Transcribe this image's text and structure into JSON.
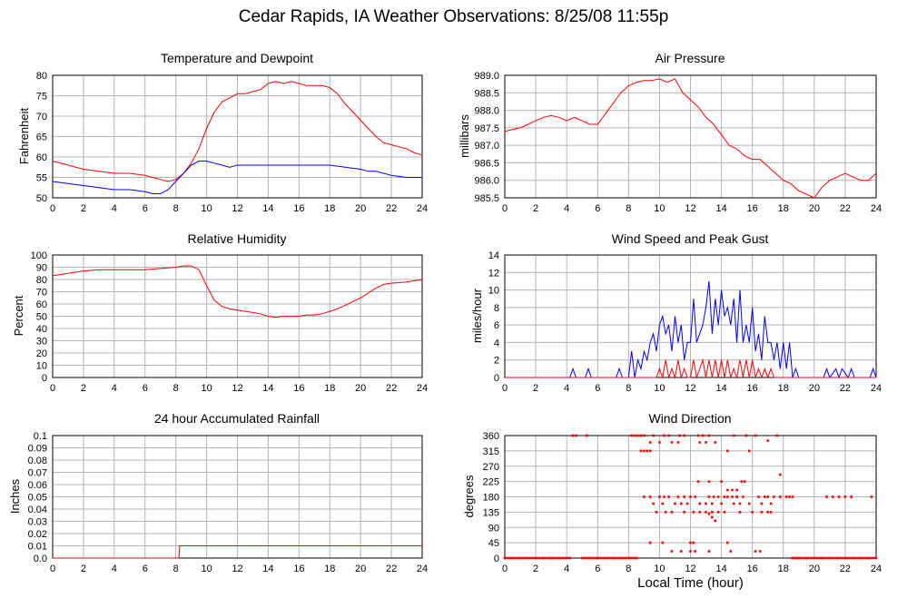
{
  "page": {
    "title": "Cedar Rapids, IA Weather Observations: 8/25/08 11:55p",
    "xlabel": "Local Time (hour)"
  },
  "colors": {
    "red": "#ff0000",
    "blue": "#0000ff",
    "grid": "#b4b4b4"
  },
  "chart_data": [
    {
      "id": "temp",
      "type": "line",
      "title": "Temperature and Dewpoint",
      "xlabel": "",
      "ylabel": "Fahrenheit",
      "xlim": [
        0,
        24
      ],
      "ylim": [
        50,
        80
      ],
      "xticks": [
        0,
        2,
        4,
        6,
        8,
        10,
        12,
        14,
        16,
        18,
        20,
        22,
        24
      ],
      "yticks": [
        50,
        55,
        60,
        65,
        70,
        75,
        80
      ],
      "grid": true,
      "series": [
        {
          "color": "red",
          "x": [
            0,
            1,
            2,
            3,
            4,
            5,
            6,
            7,
            7.5,
            8,
            8.5,
            9,
            9.5,
            10,
            10.5,
            11,
            11.5,
            12,
            12.5,
            13,
            13.5,
            14,
            14.5,
            15,
            15.5,
            16,
            16.5,
            17,
            17.5,
            18,
            18.5,
            19,
            19.5,
            20,
            20.5,
            21,
            21.5,
            22,
            22.5,
            23,
            23.5,
            24
          ],
          "y": [
            59,
            58,
            57,
            56.5,
            56,
            56,
            55.5,
            54.5,
            54,
            54.5,
            56,
            58.5,
            62,
            67,
            71,
            73.5,
            74.5,
            75.5,
            75.5,
            76,
            76.5,
            78,
            78.5,
            78,
            78.5,
            78,
            77.5,
            77.5,
            77.5,
            77,
            75.5,
            73,
            71,
            69,
            67,
            65,
            63.5,
            63,
            62.5,
            62,
            61,
            60.5
          ]
        },
        {
          "color": "blue",
          "x": [
            0,
            1,
            2,
            3,
            4,
            5,
            6,
            6.5,
            7,
            7.5,
            8,
            8.5,
            9,
            9.5,
            10,
            10.5,
            11,
            11.5,
            12,
            13,
            14,
            15,
            16,
            17,
            18,
            19,
            20,
            20.5,
            21,
            21.5,
            22,
            23,
            24
          ],
          "y": [
            54,
            53.5,
            53,
            52.5,
            52,
            52,
            51.5,
            51,
            51,
            52,
            54,
            56,
            58,
            59,
            59,
            58.5,
            58,
            57.5,
            58,
            58,
            58,
            58,
            58,
            58,
            58,
            57.5,
            57,
            56.5,
            56.5,
            56,
            55.5,
            55,
            55
          ]
        }
      ]
    },
    {
      "id": "pres",
      "type": "line",
      "title": "Air Pressure",
      "xlabel": "",
      "ylabel": "millibars",
      "xlim": [
        0,
        24
      ],
      "ylim": [
        985.5,
        989.0
      ],
      "xticks": [
        0,
        2,
        4,
        6,
        8,
        10,
        12,
        14,
        16,
        18,
        20,
        22,
        24
      ],
      "yticks": [
        985.5,
        986.0,
        986.5,
        987.0,
        987.5,
        988.0,
        988.5,
        989.0
      ],
      "grid": true,
      "series": [
        {
          "color": "red",
          "x": [
            0,
            0.5,
            1,
            1.5,
            2,
            2.5,
            3,
            3.5,
            4,
            4.5,
            5,
            5.5,
            6,
            6.5,
            7,
            7.5,
            8,
            8.5,
            9,
            9.5,
            10,
            10.5,
            11,
            11.5,
            12,
            12.5,
            13,
            13.5,
            14,
            14.5,
            15,
            15.5,
            16,
            16.5,
            17,
            17.5,
            18,
            18.5,
            19,
            19.5,
            20,
            20.5,
            21,
            21.5,
            22,
            22.5,
            23,
            23.5,
            24
          ],
          "y": [
            987.4,
            987.45,
            987.5,
            987.6,
            987.7,
            987.8,
            987.85,
            987.8,
            987.7,
            987.8,
            987.7,
            987.6,
            987.6,
            987.9,
            988.2,
            988.5,
            988.7,
            988.8,
            988.85,
            988.85,
            988.9,
            988.8,
            988.9,
            988.5,
            988.3,
            988.1,
            987.8,
            987.6,
            987.3,
            987.0,
            986.9,
            986.7,
            986.6,
            986.6,
            986.4,
            986.2,
            986.0,
            985.9,
            985.7,
            985.6,
            985.5,
            985.8,
            986.0,
            986.1,
            986.2,
            986.1,
            986.0,
            986.0,
            986.2
          ]
        }
      ]
    },
    {
      "id": "rh",
      "type": "line",
      "title": "Relative Humidity",
      "xlabel": "",
      "ylabel": "Percent",
      "xlim": [
        0,
        24
      ],
      "ylim": [
        0,
        100
      ],
      "xticks": [
        0,
        2,
        4,
        6,
        8,
        10,
        12,
        14,
        16,
        18,
        20,
        22,
        24
      ],
      "yticks": [
        0,
        10,
        20,
        30,
        40,
        50,
        60,
        70,
        80,
        90,
        100
      ],
      "grid": true,
      "series": [
        {
          "color": "red",
          "x": [
            0,
            1,
            2,
            3,
            4,
            5,
            6,
            7,
            8,
            8.5,
            9,
            9.5,
            10,
            10.5,
            11,
            11.5,
            12,
            12.5,
            13,
            13.5,
            14,
            14.5,
            15,
            15.5,
            16,
            16.5,
            17,
            17.5,
            18,
            18.5,
            19,
            19.5,
            20,
            20.5,
            21,
            21.5,
            22,
            23,
            24
          ],
          "y": [
            83,
            85,
            87,
            88,
            88,
            88,
            88,
            89,
            90,
            91,
            91,
            88,
            75,
            63,
            58,
            56,
            55,
            54,
            53,
            52,
            50,
            49,
            50,
            50,
            50,
            51,
            51,
            52,
            54,
            56,
            59,
            62,
            65,
            69,
            73,
            76,
            77,
            78,
            80
          ]
        }
      ]
    },
    {
      "id": "wind",
      "type": "line",
      "title": "Wind Speed and Peak Gust",
      "xlabel": "",
      "ylabel": "miles/hour",
      "xlim": [
        0,
        24
      ],
      "ylim": [
        0,
        14
      ],
      "xticks": [
        0,
        2,
        4,
        6,
        8,
        10,
        12,
        14,
        16,
        18,
        20,
        22,
        24
      ],
      "yticks": [
        0,
        2,
        4,
        6,
        8,
        10,
        12,
        14
      ],
      "grid": true,
      "series": [
        {
          "color": "blue",
          "x": [
            0,
            4.2,
            4.4,
            4.6,
            5.2,
            5.4,
            5.6,
            7.2,
            7.4,
            7.6,
            8.0,
            8.2,
            8.4,
            8.6,
            8.8,
            9.0,
            9.2,
            9.4,
            9.6,
            9.8,
            10.0,
            10.2,
            10.4,
            10.6,
            10.8,
            11.0,
            11.2,
            11.4,
            11.6,
            11.8,
            12.0,
            12.2,
            12.4,
            12.6,
            12.8,
            13.0,
            13.2,
            13.4,
            13.6,
            13.8,
            14.0,
            14.2,
            14.4,
            14.6,
            14.8,
            15.0,
            15.2,
            15.4,
            15.6,
            15.8,
            16.0,
            16.2,
            16.4,
            16.6,
            16.8,
            17.0,
            17.2,
            17.4,
            17.6,
            17.8,
            18.0,
            18.2,
            18.4,
            18.6,
            18.8,
            19.0,
            20.6,
            20.8,
            21.0,
            21.4,
            21.6,
            21.8,
            22.2,
            22.4,
            22.6,
            23.6,
            23.8,
            24
          ],
          "y": [
            0,
            0,
            1,
            0,
            0,
            1,
            0,
            0,
            1,
            0,
            0,
            3,
            0,
            2,
            1,
            3,
            2,
            4,
            5,
            3,
            6,
            7,
            5,
            6,
            3,
            7,
            4,
            6,
            2,
            4,
            4,
            9,
            4,
            5,
            6,
            8,
            11,
            5,
            9,
            6,
            10,
            7,
            8,
            6,
            9,
            4,
            10,
            4,
            6,
            4,
            8,
            3,
            5,
            2,
            7,
            4,
            4,
            2,
            4,
            1,
            4,
            1,
            4,
            0,
            1,
            0,
            0,
            1,
            0,
            1,
            0,
            1,
            0,
            1,
            0,
            0,
            1,
            0
          ]
        },
        {
          "color": "red",
          "x": [
            0,
            9.8,
            10.0,
            10.2,
            10.4,
            10.6,
            10.8,
            11.0,
            11.2,
            11.4,
            11.6,
            11.8,
            12.0,
            12.2,
            12.4,
            12.6,
            12.8,
            13.0,
            13.2,
            13.4,
            13.6,
            13.8,
            14.0,
            14.2,
            14.4,
            14.6,
            14.8,
            15.0,
            15.2,
            15.4,
            15.6,
            15.8,
            16.0,
            16.2,
            16.4,
            16.6,
            16.8,
            17.0,
            17.2,
            17.4,
            17.6,
            24
          ],
          "y": [
            0,
            0,
            1,
            0,
            2,
            0,
            1,
            0,
            2,
            0,
            1,
            0,
            0,
            2,
            0,
            1,
            2,
            0,
            2,
            0,
            2,
            0,
            2,
            0,
            2,
            0,
            1,
            0,
            2,
            0,
            2,
            0,
            2,
            0,
            1,
            0,
            1,
            0,
            1,
            0,
            0,
            0
          ]
        }
      ]
    },
    {
      "id": "rain",
      "type": "line",
      "title": "24 hour Accumulated Rainfall",
      "xlabel": "",
      "ylabel": "Inches",
      "xlim": [
        0,
        24
      ],
      "ylim": [
        0,
        0.1
      ],
      "xticks": [
        0,
        2,
        4,
        6,
        8,
        10,
        12,
        14,
        16,
        18,
        20,
        22,
        24
      ],
      "yticks": [
        0.0,
        0.01,
        0.02,
        0.03,
        0.04,
        0.05,
        0.06,
        0.07,
        0.08,
        0.09,
        0.1
      ],
      "ytick_labels": [
        "0.0",
        "0.01",
        "0.02",
        "0.03",
        "0.04",
        "0.05",
        "0.06",
        "0.07",
        "0.08",
        "0.09",
        "0.1"
      ],
      "grid": true,
      "series": [
        {
          "color": "red",
          "x": [
            0,
            8.2,
            8.25,
            24
          ],
          "y": [
            0,
            0,
            0.01,
            0.01
          ]
        }
      ]
    },
    {
      "id": "dir",
      "type": "scatter",
      "title": "Wind Direction",
      "xlabel": "Local Time (hour)",
      "ylabel": "degrees",
      "xlim": [
        0,
        24
      ],
      "ylim": [
        0,
        360
      ],
      "xticks": [
        0,
        2,
        4,
        6,
        8,
        10,
        12,
        14,
        16,
        18,
        20,
        22,
        24
      ],
      "yticks": [
        0,
        45,
        90,
        135,
        180,
        225,
        270,
        315,
        360
      ],
      "grid": true,
      "series": [
        {
          "color": "red",
          "x": [
            4.4,
            4.6,
            5.3,
            8.2,
            8.4,
            8.6,
            8.8,
            9.0,
            9.6,
            10.3,
            10.6,
            11.3,
            11.6,
            12.5,
            12.8,
            13.2,
            14.8,
            15.6,
            16.2,
            17.6,
            8.8,
            9.0,
            9.2,
            9.4,
            9.4,
            10.0,
            10.8,
            11.2,
            12.6,
            13.0,
            13.6,
            14.4,
            15.8,
            17.0,
            9.0,
            9.4,
            10.0,
            10.3,
            10.6,
            11.2,
            11.6,
            12.0,
            12.3,
            13.2,
            13.5,
            13.8,
            14.2,
            14.4,
            14.7,
            15.0,
            15.4,
            16.4,
            16.8,
            17.0,
            17.4,
            17.8,
            18.2,
            18.4,
            18.6,
            20.8,
            21.2,
            21.6,
            22.0,
            22.4,
            23.7,
            9.6,
            10.2,
            11.0,
            11.4,
            11.8,
            12.6,
            13.0,
            13.4,
            14.0,
            14.8,
            15.2,
            15.8,
            16.6,
            17.2,
            9.8,
            10.4,
            10.8,
            11.6,
            12.2,
            12.6,
            13.0,
            13.4,
            13.8,
            14.2,
            15.2,
            16.0,
            16.6,
            17.0,
            17.2,
            12.5,
            13.2,
            14.0,
            14.4,
            14.7,
            15.0,
            15.3,
            15.5,
            17.8,
            9.4,
            10.2,
            10.8,
            11.4,
            12.0,
            12.2,
            13.2,
            14.6,
            15.0,
            14.4,
            13.6,
            13.2,
            13.4
          ],
          "y": [
            360,
            360,
            360,
            360,
            360,
            360,
            360,
            360,
            360,
            360,
            360,
            360,
            360,
            360,
            360,
            360,
            360,
            360,
            360,
            360,
            315,
            315,
            315,
            315,
            340,
            340,
            340,
            340,
            340,
            340,
            340,
            315,
            315,
            345,
            180,
            180,
            180,
            180,
            180,
            180,
            180,
            180,
            180,
            180,
            180,
            180,
            180,
            180,
            180,
            180,
            180,
            180,
            180,
            180,
            180,
            180,
            180,
            180,
            180,
            180,
            180,
            180,
            180,
            180,
            180,
            160,
            160,
            160,
            160,
            160,
            160,
            160,
            160,
            160,
            160,
            160,
            160,
            160,
            160,
            135,
            135,
            135,
            135,
            135,
            135,
            135,
            135,
            135,
            135,
            135,
            135,
            135,
            135,
            135,
            225,
            225,
            225,
            200,
            200,
            200,
            225,
            225,
            245,
            45,
            45,
            20,
            20,
            20,
            45,
            20,
            20,
            180,
            45,
            110,
            130,
            120
          ]
        },
        {
          "color": "red",
          "x": [
            0,
            0.5,
            1,
            1.5,
            2,
            2.5,
            3,
            3.5,
            4,
            5,
            5.5,
            6,
            6.5,
            7,
            7.5,
            8,
            8.5,
            18.6,
            19,
            19.5,
            20,
            20.5,
            21,
            21.5,
            22,
            22.5,
            23,
            23.5,
            24,
            16.2,
            16.5,
            12.0,
            12.3
          ],
          "y": [
            0,
            0,
            0,
            0,
            0,
            0,
            0,
            0,
            0,
            0,
            0,
            0,
            0,
            0,
            0,
            0,
            0,
            0,
            0,
            0,
            0,
            0,
            0,
            0,
            0,
            0,
            0,
            0,
            0,
            20,
            20,
            45,
            20
          ]
        }
      ]
    }
  ]
}
